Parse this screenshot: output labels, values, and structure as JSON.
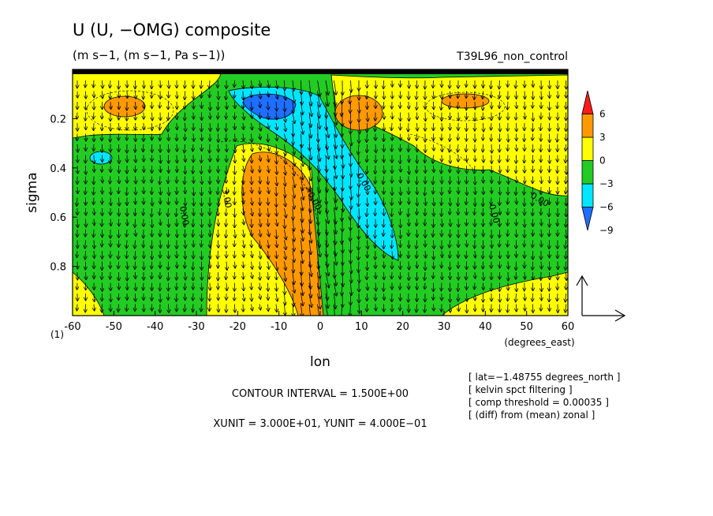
{
  "chart_data": {
    "type": "heatmap",
    "title": "U (U, −OMG) composite",
    "units": "(m s−1, (m s−1, Pa s−1))",
    "run_label": "T39L96_non_control",
    "xlabel": "lon",
    "x_units": "(degrees_east)",
    "ylabel": "sigma",
    "panel_label": "(1)",
    "xlim": [
      -60,
      60
    ],
    "ylim": [
      1.0,
      0.0
    ],
    "x_ticks": [
      -60,
      -50,
      -40,
      -30,
      -20,
      -10,
      0,
      10,
      20,
      30,
      40,
      50,
      60
    ],
    "y_ticks": [
      0.2,
      0.4,
      0.6,
      0.8
    ],
    "colorbar": {
      "levels": [
        -9,
        -6,
        -3,
        0,
        3,
        6
      ],
      "level_labels": [
        "6",
        "3",
        "0",
        "−3",
        "−6",
        "−9"
      ],
      "colors": [
        "#1e6eff",
        "#00e6ff",
        "#22cc22",
        "#ffff00",
        "#ff9900",
        "#ff1a1a"
      ]
    },
    "contour_labels": [
      "0.00",
      "3.00",
      "−0.00",
      "0.00",
      "0.00",
      "0.00"
    ],
    "filled_regions": [
      {
        "name": "negative-core",
        "level": -6,
        "lon_center": -8,
        "sigma_center": 0.15
      },
      {
        "name": "negative-tongue",
        "level": -3,
        "lon_center": 14,
        "sigma_center": 0.55
      },
      {
        "name": "positive-column",
        "level": 3,
        "lon_center": -8,
        "sigma_center": 0.62
      },
      {
        "name": "positive-west",
        "level": 3,
        "lon_center": -52,
        "sigma_center": 0.17
      },
      {
        "name": "positive-east",
        "level": 3,
        "lon_center": 36,
        "sigma_center": 0.14
      },
      {
        "name": "positive-center",
        "level": 3,
        "lon_center": 10,
        "sigma_center": 0.17
      }
    ],
    "grid": false,
    "legend": "right"
  },
  "footer": {
    "contour_interval": "CONTOUR INTERVAL = 1.500E+00",
    "xunit_yunit": "XUNIT = 3.000E+01, YUNIT = 4.000E−01"
  },
  "notes": [
    "[ lat=−1.48755 degrees_north ]",
    "[ kelvin spct filtering ]",
    "[ comp threshold = 0.00035 ]",
    "[ (diff) from (mean) zonal ]"
  ]
}
